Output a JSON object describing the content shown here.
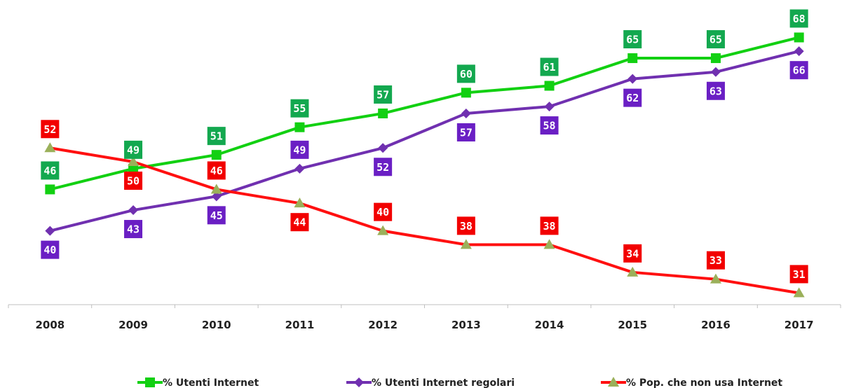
{
  "chart_data": {
    "type": "line",
    "categories": [
      "2008",
      "2009",
      "2010",
      "2011",
      "2012",
      "2013",
      "2014",
      "2015",
      "2016",
      "2017"
    ],
    "ylim": [
      28,
      72
    ],
    "grid": false,
    "legend_position": "bottom",
    "series": [
      {
        "name": "% Utenti Internet",
        "color": "#12d012",
        "label_color": "#13a84f",
        "marker": "square",
        "values": [
          46,
          49,
          51,
          55,
          57,
          60,
          61,
          65,
          65,
          68
        ],
        "label_pos": [
          "above",
          "above",
          "above",
          "above",
          "above",
          "above",
          "above",
          "above",
          "above",
          "above"
        ]
      },
      {
        "name": "% Utenti Internet regolari",
        "color": "#7030b0",
        "label_color": "#6a1fc4",
        "marker": "diamond",
        "values": [
          40,
          43,
          45,
          49,
          52,
          57,
          58,
          62,
          63,
          66
        ],
        "label_pos": [
          "below",
          "below",
          "below",
          "above",
          "below",
          "below",
          "below",
          "below",
          "below",
          "below"
        ]
      },
      {
        "name": "% Pop. che non usa Internet",
        "color": "#ff1010",
        "label_color": "#f20000",
        "marker": "triangle",
        "marker_color": "#9bb05a",
        "values": [
          52,
          50,
          46,
          44,
          40,
          38,
          38,
          34,
          33,
          31
        ],
        "label_pos": [
          "above",
          "below",
          "above",
          "below",
          "above",
          "above",
          "above",
          "above",
          "above",
          "above"
        ]
      }
    ]
  }
}
